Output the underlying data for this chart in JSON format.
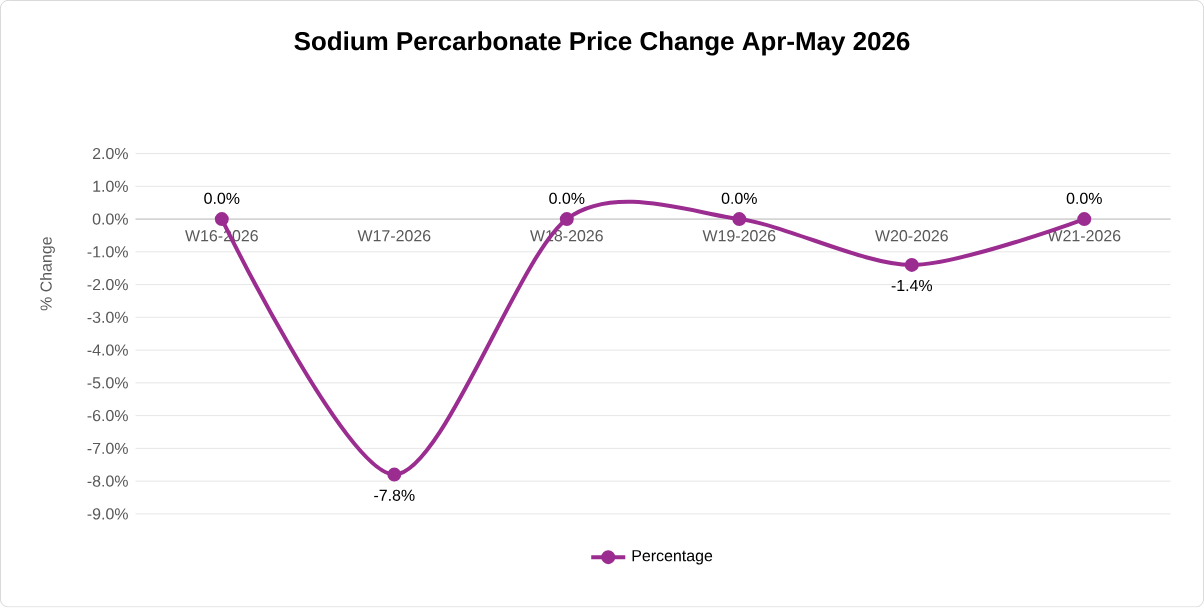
{
  "chart_data": {
    "type": "line",
    "title": "Sodium Percarbonate Price Change Apr-May 2026",
    "ylabel": "% Change",
    "categories": [
      "W16-2026",
      "W17-2026",
      "W18-2026",
      "W19-2026",
      "W20-2026",
      "W21-2026"
    ],
    "series": [
      {
        "name": "Percentage",
        "color": "#9b2d91",
        "values": [
          0.0,
          -7.8,
          0.0,
          0.0,
          -1.4,
          0.0
        ],
        "value_labels": [
          "0.0%",
          "-7.8%",
          "0.0%",
          "0.0%",
          "-1.4%",
          "0.0%"
        ]
      }
    ],
    "ylim": [
      -9,
      2
    ],
    "yticks": [
      {
        "value": -9,
        "label": "-9.0%"
      },
      {
        "value": -8,
        "label": "-8.0%"
      },
      {
        "value": -7,
        "label": "-7.0%"
      },
      {
        "value": -6,
        "label": "-6.0%"
      },
      {
        "value": -5,
        "label": "-5.0%"
      },
      {
        "value": -4,
        "label": "-4.0%"
      },
      {
        "value": -3,
        "label": "-3.0%"
      },
      {
        "value": -2,
        "label": "-2.0%"
      },
      {
        "value": -1,
        "label": "-1.0%"
      },
      {
        "value": 0,
        "label": "0.0%"
      },
      {
        "value": 1,
        "label": "1.0%"
      },
      {
        "value": 2,
        "label": "2.0%"
      }
    ],
    "grid": "y",
    "legend": "bottom",
    "marker": "circle",
    "line_style": "solid"
  }
}
